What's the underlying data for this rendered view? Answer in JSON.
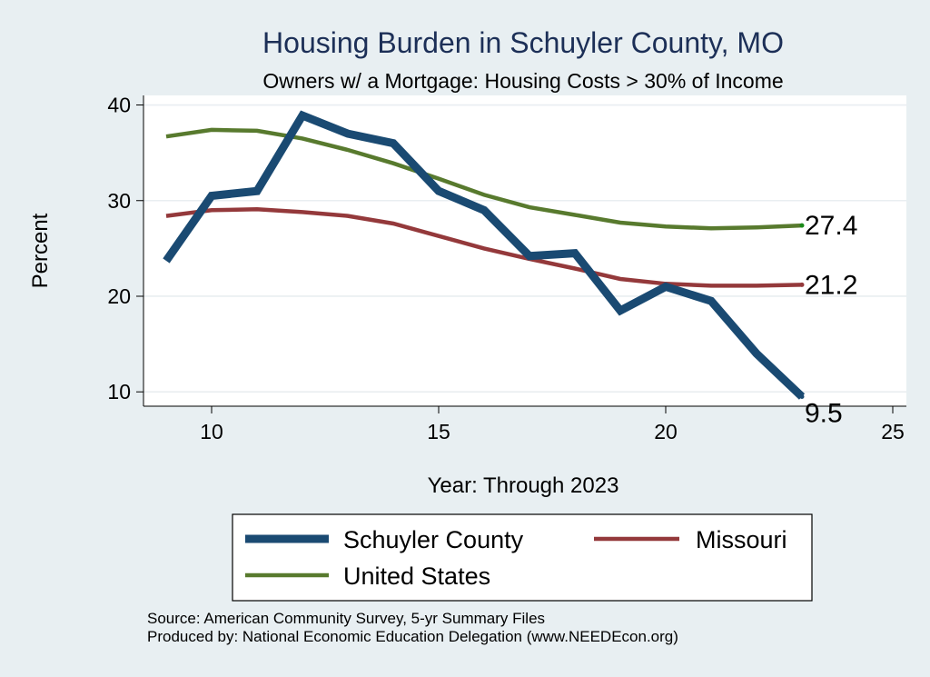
{
  "chart_data": {
    "type": "line",
    "title": "Housing Burden in Schuyler County, MO",
    "subtitle": "Owners w/ a Mortgage: Housing Costs > 30% of Income",
    "xlabel": "Year: Through 2023",
    "ylabel": "Percent",
    "xlim": [
      8.5,
      25.3
    ],
    "ylim": [
      8.5,
      41
    ],
    "xticks": [
      10,
      15,
      20,
      25
    ],
    "yticks": [
      10,
      20,
      30,
      40
    ],
    "grid": true,
    "legend_position": "bottom",
    "x": [
      9,
      10,
      11,
      12,
      13,
      14,
      15,
      16,
      17,
      18,
      19,
      20,
      21,
      22,
      23
    ],
    "series": [
      {
        "name": "Schuyler County",
        "color": "#1a4a72",
        "values": [
          23.7,
          30.5,
          31.0,
          38.9,
          37.0,
          36.0,
          31.0,
          29.0,
          24.2,
          24.5,
          18.5,
          21.0,
          19.5,
          14.0,
          9.5
        ],
        "end_label": "9.5"
      },
      {
        "name": "Missouri",
        "color": "#94393b",
        "values": [
          28.4,
          29.0,
          29.1,
          28.8,
          28.4,
          27.6,
          26.3,
          25.0,
          23.9,
          22.9,
          21.8,
          21.3,
          21.1,
          21.1,
          21.2
        ],
        "end_label": "21.2"
      },
      {
        "name": "United States",
        "color": "#587a2e",
        "values": [
          36.7,
          37.4,
          37.3,
          36.5,
          35.3,
          33.9,
          32.3,
          30.6,
          29.3,
          28.5,
          27.7,
          27.3,
          27.1,
          27.2,
          27.4
        ],
        "end_label": "27.4"
      }
    ],
    "notes": [
      "Source: American Community Survey, 5-yr Summary Files",
      "Produced by: National Economic Education Delegation (www.NEEDEcon.org)"
    ]
  }
}
